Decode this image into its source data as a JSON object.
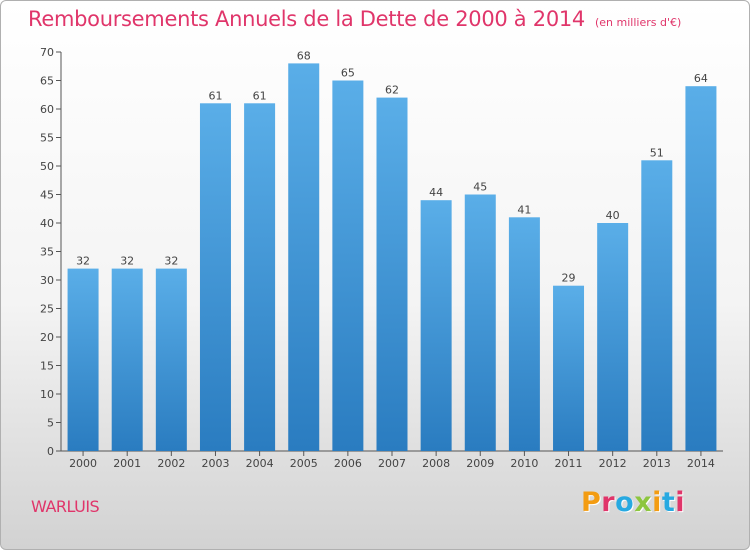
{
  "header": {
    "title": "Remboursements Annuels de la Dette de 2000 à 2014",
    "unit": "(en milliers d'€)"
  },
  "footer": {
    "commune": "WARLUIS",
    "logo": "Proxiti"
  },
  "colors": {
    "title": "#e0356a",
    "bar_top": "#5aaee8",
    "bar_bottom": "#2a7cc0",
    "logo": [
      "#f39c12",
      "#e0356a",
      "#27a9e1",
      "#8dc63f",
      "#f39c12",
      "#27a9e1",
      "#e0356a"
    ]
  },
  "chart_data": {
    "type": "bar",
    "title": "Remboursements Annuels de la Dette de 2000 à 2014",
    "subtitle": "(en milliers d'€)",
    "categories": [
      "2000",
      "2001",
      "2002",
      "2003",
      "2004",
      "2005",
      "2006",
      "2007",
      "2008",
      "2009",
      "2010",
      "2011",
      "2012",
      "2013",
      "2014"
    ],
    "values": [
      32,
      32,
      32,
      61,
      61,
      68,
      65,
      62,
      44,
      45,
      41,
      29,
      40,
      51,
      64
    ],
    "ylim": [
      0,
      70
    ],
    "yticks": [
      0,
      5,
      10,
      15,
      20,
      25,
      30,
      35,
      40,
      45,
      50,
      55,
      60,
      65,
      70
    ],
    "grid": false,
    "legend": "none"
  }
}
